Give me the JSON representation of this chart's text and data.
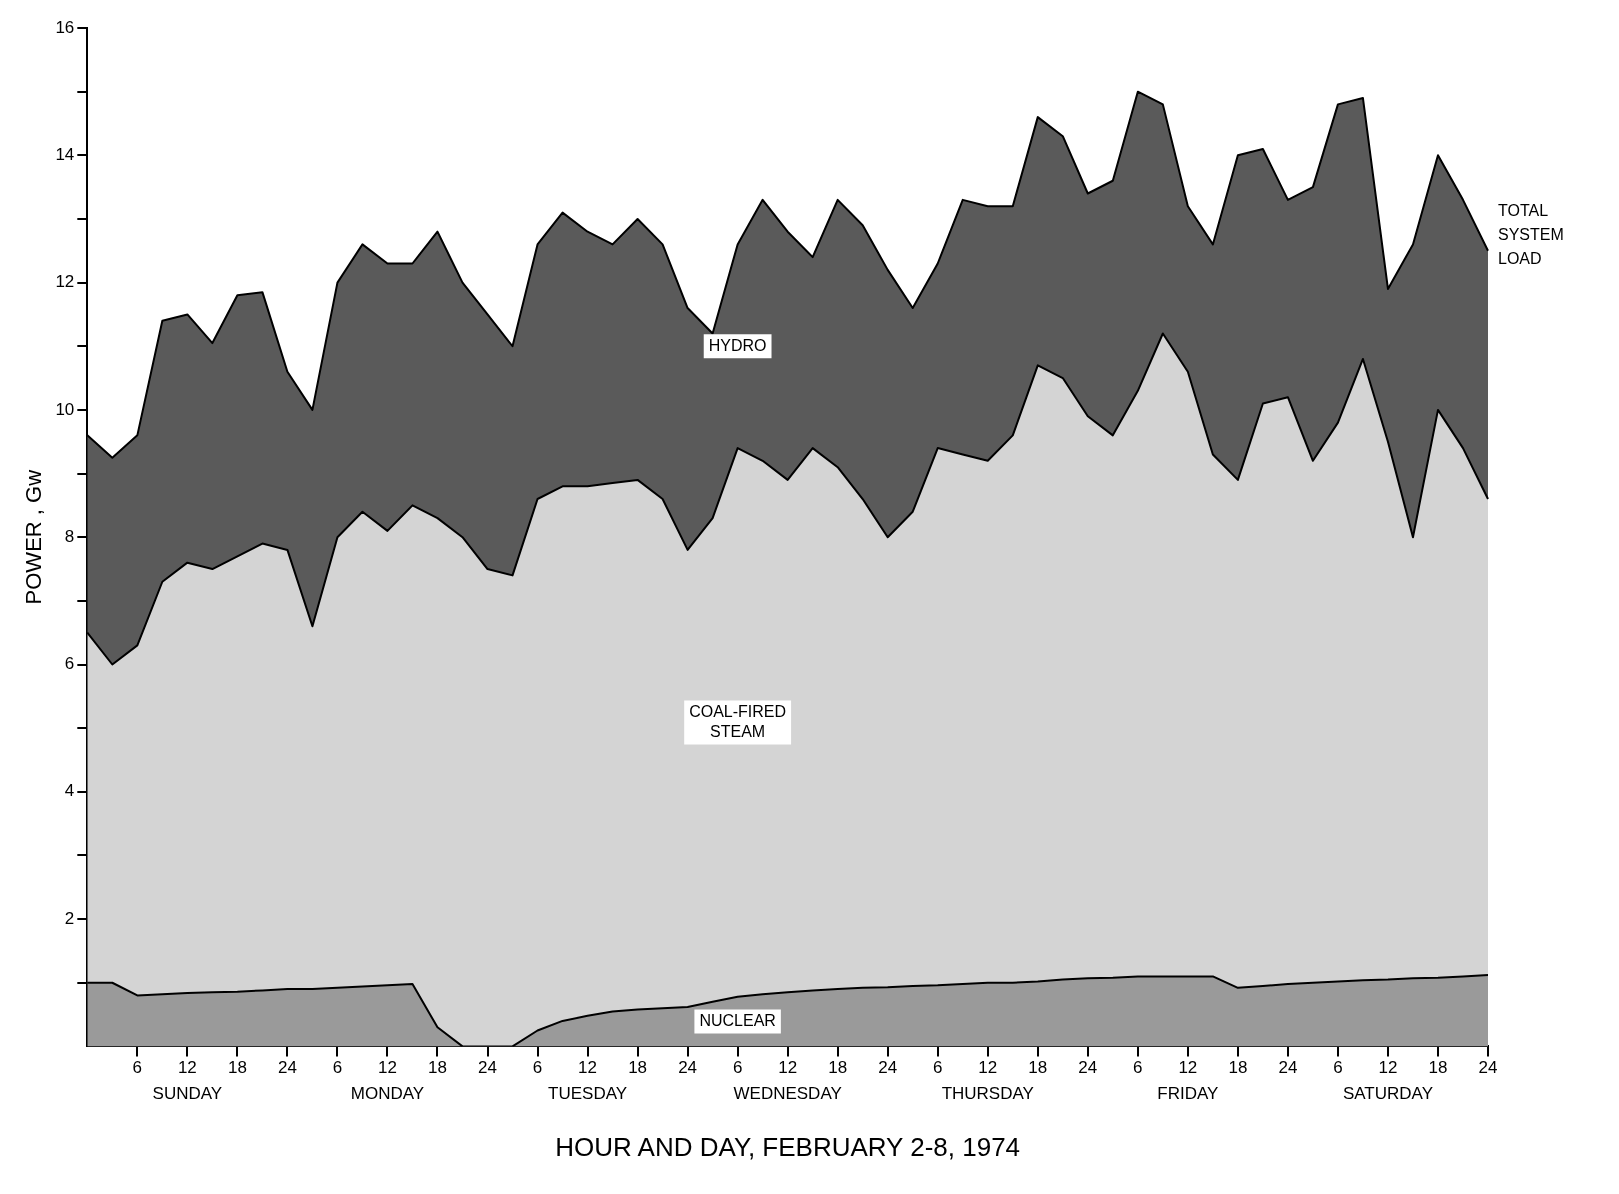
{
  "chart_data": {
    "type": "area",
    "stacked": true,
    "xlabel": "HOUR AND DAY, FEBRUARY 2-8, 1974",
    "ylabel": "POWER , Gw",
    "categories": [
      null,
      null,
      "6",
      null,
      "12",
      null,
      "18",
      null,
      "24",
      null,
      "6",
      null,
      "12",
      null,
      "18",
      null,
      "24",
      null,
      "6",
      null,
      "12",
      null,
      "18",
      null,
      "24",
      null,
      "6",
      null,
      "12",
      null,
      "18",
      null,
      "24",
      null,
      "6",
      null,
      "12",
      null,
      "18",
      null,
      "24",
      null,
      "6",
      null,
      "12",
      null,
      "18",
      null,
      "24",
      null,
      "6",
      null,
      "12",
      null,
      "18",
      null,
      "24"
    ],
    "series": [
      {
        "name": "NUCLEAR",
        "color": "#9a9a9a",
        "values": [
          1.0,
          1.0,
          0.8,
          0.82,
          0.84,
          0.85,
          0.86,
          0.88,
          0.9,
          0.9,
          0.92,
          0.94,
          0.96,
          0.98,
          0.3,
          0,
          0,
          0,
          0.25,
          0.4,
          0.48,
          0.55,
          0.58,
          0.6,
          0.62,
          0.7,
          0.78,
          0.82,
          0.85,
          0.88,
          0.9,
          0.92,
          0.93,
          0.95,
          0.96,
          0.98,
          1.0,
          1.0,
          1.02,
          1.05,
          1.07,
          1.08,
          1.1,
          1.1,
          1.1,
          1.1,
          0.92,
          0.95,
          0.98,
          1.0,
          1.02,
          1.04,
          1.05,
          1.07,
          1.08,
          1.1,
          1.12
        ]
      },
      {
        "name": "COAL-FIRED STEAM",
        "color": "#d4d4d4",
        "values": [
          5.5,
          5.0,
          5.5,
          6.48,
          6.76,
          6.65,
          6.84,
          7.02,
          6.9,
          5.7,
          7.08,
          7.46,
          7.14,
          7.52,
          8.0,
          8.0,
          7.5,
          7.4,
          8.35,
          8.4,
          8.32,
          8.3,
          8.32,
          8.0,
          7.18,
          7.6,
          8.62,
          8.38,
          8.05,
          8.52,
          8.2,
          7.68,
          7.07,
          7.45,
          8.44,
          8.32,
          8.2,
          8.6,
          9.68,
          9.45,
          8.83,
          8.52,
          9.2,
          10.1,
          9.5,
          8.2,
          7.98,
          9.15,
          9.22,
          8.2,
          8.78,
          9.76,
          8.45,
          6.93,
          8.92,
          8.3,
          7.48
        ]
      },
      {
        "name": "HYDRO",
        "color": "#5a5a5a",
        "values": [
          3.1,
          3.25,
          3.3,
          4.1,
          3.9,
          3.55,
          4.1,
          3.95,
          2.8,
          3.4,
          4.0,
          4.2,
          4.2,
          3.8,
          4.5,
          4.0,
          4.0,
          3.6,
          4.0,
          4.3,
          4.0,
          3.75,
          4.1,
          4.0,
          3.8,
          2.9,
          3.2,
          4.1,
          3.9,
          3.0,
          4.2,
          4.3,
          4.2,
          3.2,
          2.9,
          4.0,
          4.0,
          3.6,
          3.9,
          3.8,
          3.5,
          4.0,
          4.7,
          3.6,
          2.6,
          3.3,
          5.1,
          4.0,
          3.1,
          4.3,
          5.0,
          4.1,
          2.4,
          4.6,
          4.0,
          3.9,
          3.9
        ]
      }
    ],
    "ylim": [
      0,
      16
    ],
    "yticks": [
      {
        "value": 1,
        "label": null
      },
      2,
      {
        "value": 3,
        "label": null
      },
      4,
      {
        "value": 5,
        "label": null
      },
      6,
      {
        "value": 7,
        "label": null
      },
      8,
      {
        "value": 9,
        "label": null
      },
      10,
      {
        "value": 11,
        "label": null
      },
      12,
      {
        "value": 13,
        "label": null
      },
      14,
      {
        "value": 15,
        "label": null
      },
      16
    ],
    "annotations": [
      "TOTAL SYSTEM LOAD",
      "SUNDAY",
      "MONDAY",
      "TUESDAY",
      "WEDNESDAY",
      "THURSDAY",
      "FRIDAY",
      "SATURDAY"
    ],
    "grid": false,
    "legend": false,
    "marker": "none"
  }
}
